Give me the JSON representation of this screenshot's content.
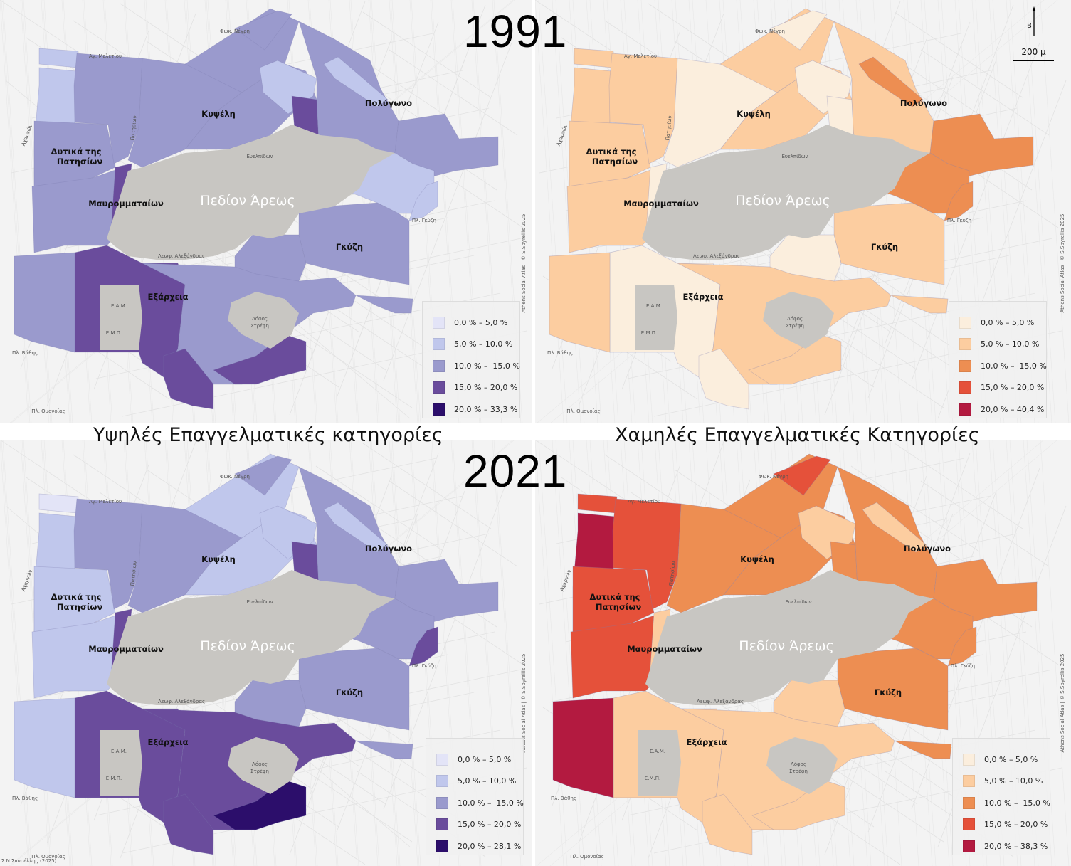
{
  "titles": {
    "year_top": "1991",
    "year_bottom": "2021",
    "subtitle_left": "Υψηλές Επαγγελματικές κατηγορίες",
    "subtitle_right": "Χαμηλές Επαγγελματικές Κατηγορίες"
  },
  "north_arrow": {
    "letter": "Β"
  },
  "scale_bar": {
    "label": "200 μ"
  },
  "places": {
    "kypseli": "Κυψέλη",
    "polygono": "Πολύγωνο",
    "dytika_line1": "Δυτικά της",
    "dytika_line2": "Πατησίων",
    "mavrommataion": "Μαυρομματαίων",
    "gkyzi": "Γκύζη",
    "exarcheia": "Εξάρχεια",
    "park": "Πεδίον Άρεως",
    "eam": "Ε.Α.Μ.",
    "emp": "Ε.Μ.Π.",
    "strefi_line1": "Λόφος",
    "strefi_line2": "Στρέφη"
  },
  "streets": {
    "fokionos_negri": "Φωκ. Νέγρη",
    "ag_meletiou": "Αγ. Μελετίου",
    "patision": "Πατησίων",
    "evelpidon": "Ευελπίδων",
    "acharnon": "Αχαρνών",
    "pl_gkyzi": "Πλ. Γκύζη",
    "leof_alexandras": "Λεωφ. Αλεξάνδρας",
    "pl_vathis": "Πλ. Βάθης",
    "pl_omonoias": "Πλ. Ομονοίας"
  },
  "credits": {
    "atlas": "Athens Social Atlas | © S.Spyrellis 2025",
    "bottom_left": "© Σ.Ν.Σπυρέλλης (2025)"
  },
  "colors": {
    "park_gray": "#c8c6c2",
    "purple": [
      "#e3e4f7",
      "#c0c7ec",
      "#9a9acd",
      "#6a4c9c",
      "#2c0e6b"
    ],
    "orange": [
      "#fbeedd",
      "#fccda0",
      "#ed8e52",
      "#e5513a",
      "#b31a40"
    ]
  },
  "maps": [
    {
      "id": "high_1991",
      "legend": [
        "0,0 % – 5,0 %",
        "5,0 % – 10,0 %",
        "10,0 % –  15,0 %",
        "15,0 % – 20,0 %",
        "20,0 % – 33,3 %"
      ]
    },
    {
      "id": "low_1991",
      "legend": [
        "0,0 % – 5,0 %",
        "5,0 % – 10,0 %",
        "10,0 % –  15,0 %",
        "15,0 % – 20,0 %",
        "20,0 % – 40,4 %"
      ]
    },
    {
      "id": "high_2021",
      "legend": [
        "0,0 % – 5,0 %",
        "5,0 % – 10,0 %",
        "10,0 % –  15,0 %",
        "15,0 % – 20,0 %",
        "20,0 % – 28,1 %"
      ]
    },
    {
      "id": "low_2021",
      "legend": [
        "0,0 % – 5,0 %",
        "5,0 % – 10,0 %",
        "10,0 % –  15,0 %",
        "15,0 % – 20,0 %",
        "20,0 % – 38,3 %"
      ]
    }
  ]
}
